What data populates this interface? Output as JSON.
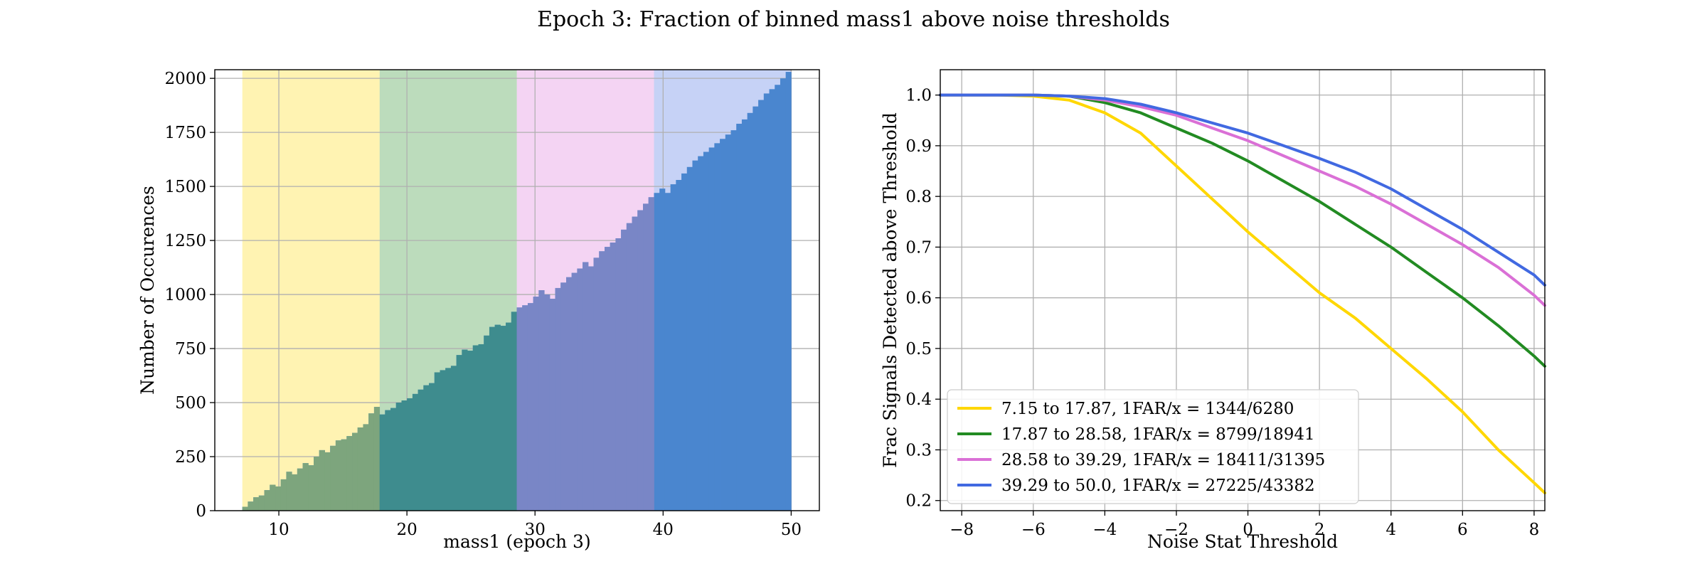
{
  "figure": {
    "title": "Epoch 3: Fraction of binned mass1 above noise thresholds"
  },
  "chart_data": [
    {
      "type": "bar",
      "subtype": "histogram",
      "xlabel": "mass1 (epoch 3)",
      "ylabel": "Number of Occurences",
      "xlim": [
        5.0,
        52.2
      ],
      "ylim": [
        0,
        2040
      ],
      "xticks": [
        10,
        20,
        30,
        40,
        50
      ],
      "yticks": [
        0,
        250,
        500,
        750,
        1000,
        1250,
        1500,
        1750,
        2000
      ],
      "grid": true,
      "bin_range": [
        7.15,
        50.0
      ],
      "bin_count": 100,
      "bin_values": [
        18,
        42,
        62,
        70,
        95,
        120,
        112,
        145,
        180,
        168,
        195,
        220,
        210,
        250,
        280,
        270,
        300,
        325,
        330,
        345,
        360,
        385,
        400,
        450,
        480,
        445,
        465,
        475,
        500,
        510,
        520,
        540,
        560,
        580,
        590,
        640,
        650,
        660,
        670,
        720,
        745,
        740,
        765,
        770,
        810,
        850,
        860,
        855,
        870,
        920,
        940,
        950,
        960,
        990,
        1020,
        1000,
        980,
        1030,
        1055,
        1080,
        1100,
        1120,
        1150,
        1130,
        1170,
        1200,
        1220,
        1240,
        1260,
        1300,
        1330,
        1360,
        1390,
        1420,
        1450,
        1470,
        1490,
        1470,
        1510,
        1530,
        1560,
        1590,
        1620,
        1640,
        1660,
        1680,
        1700,
        1720,
        1740,
        1760,
        1790,
        1810,
        1840,
        1870,
        1900,
        1930,
        1950,
        1970,
        2000,
        2030
      ],
      "bin_color": "#4a86cf",
      "ranges": [
        {
          "from": 7.15,
          "to": 17.87,
          "color": "#ffd700",
          "overlay_color": "#7da57d"
        },
        {
          "from": 17.87,
          "to": 28.58,
          "color": "#228b22",
          "overlay_color": "#3e8c8e"
        },
        {
          "from": 28.58,
          "to": 39.29,
          "color": "#da70d6",
          "overlay_color": "#7986c6"
        },
        {
          "from": 39.29,
          "to": 50.0,
          "color": "#4169e1",
          "overlay_color": "#4a86cf"
        }
      ]
    },
    {
      "type": "line",
      "xlabel": "Noise Stat Threshold",
      "ylabel": "Frac Signals Detected above Threshold",
      "xlim": [
        -8.6,
        8.3
      ],
      "ylim": [
        0.18,
        1.05
      ],
      "xticks": [
        -8,
        -6,
        -4,
        -2,
        0,
        2,
        4,
        6,
        8
      ],
      "xtick_labels": [
        "−8",
        "−6",
        "−4",
        "−2",
        "0",
        "2",
        "4",
        "6",
        "8"
      ],
      "yticks": [
        0.2,
        0.3,
        0.4,
        0.5,
        0.6,
        0.7,
        0.8,
        0.9,
        1.0
      ],
      "grid": true,
      "legend_position": "lower-left",
      "x": [
        -8.6,
        -8,
        -7,
        -6,
        -5,
        -4,
        -3,
        -2,
        -1,
        0,
        1,
        2,
        3,
        4,
        5,
        6,
        7,
        8,
        8.3
      ],
      "series": [
        {
          "name": "7.15 to 17.87, 1FAR/x = 1344/6280",
          "color": "#ffd700",
          "values": [
            1.0,
            1.0,
            1.0,
            0.998,
            0.99,
            0.965,
            0.925,
            0.86,
            0.795,
            0.73,
            0.67,
            0.61,
            0.56,
            0.5,
            0.44,
            0.375,
            0.3,
            0.235,
            0.215
          ]
        },
        {
          "name": "17.87 to 28.58, 1FAR/x = 8799/18941",
          "color": "#228b22",
          "values": [
            1.0,
            1.0,
            1.0,
            1.0,
            0.998,
            0.985,
            0.965,
            0.935,
            0.905,
            0.87,
            0.83,
            0.79,
            0.745,
            0.7,
            0.65,
            0.6,
            0.545,
            0.485,
            0.465
          ]
        },
        {
          "name": "28.58 to 39.29, 1FAR/x = 18411/31395",
          "color": "#da70d6",
          "values": [
            1.0,
            1.0,
            1.0,
            1.0,
            0.998,
            0.99,
            0.977,
            0.96,
            0.935,
            0.91,
            0.88,
            0.85,
            0.82,
            0.785,
            0.745,
            0.705,
            0.66,
            0.605,
            0.585
          ]
        },
        {
          "name": "39.29 to 50.0, 1FAR/x = 27225/43382",
          "color": "#4169e1",
          "values": [
            1.0,
            1.0,
            1.0,
            1.0,
            0.998,
            0.993,
            0.982,
            0.965,
            0.945,
            0.925,
            0.9,
            0.875,
            0.848,
            0.815,
            0.775,
            0.735,
            0.69,
            0.645,
            0.625
          ]
        }
      ]
    }
  ]
}
